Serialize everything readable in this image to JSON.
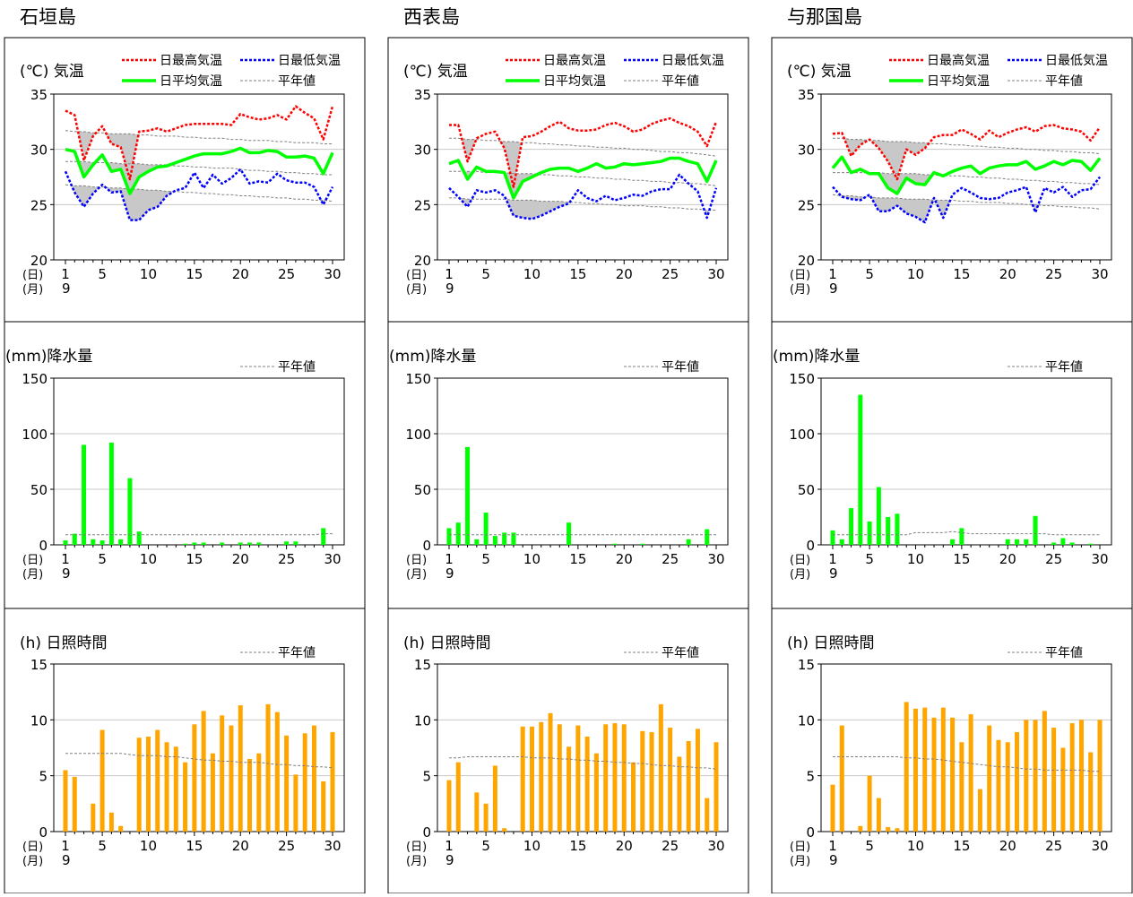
{
  "stations": [
    {
      "name": "石垣島",
      "temperature": {
        "title": "(℃) 気温",
        "legend": [
          "日最高気温",
          "日最低気温",
          "日平均気温",
          "平年値"
        ],
        "ylim": [
          20,
          35
        ],
        "yticks": [
          "35",
          "30",
          "25",
          "20"
        ],
        "max": [
          33.5,
          33.1,
          29.0,
          31.2,
          32.1,
          30.5,
          30.2,
          27.3,
          31.6,
          31.7,
          31.9,
          31.6,
          31.9,
          32.2,
          32.3,
          32.3,
          32.3,
          32.3,
          32.2,
          33.2,
          32.9,
          32.7,
          32.8,
          33.1,
          32.7,
          33.9,
          33.3,
          32.8,
          30.9,
          33.9
        ],
        "min": [
          28.0,
          26.1,
          24.8,
          26.0,
          26.8,
          26.1,
          26.2,
          23.6,
          23.6,
          24.5,
          24.8,
          25.8,
          26.3,
          26.5,
          27.9,
          26.5,
          27.7,
          26.9,
          27.4,
          28.2,
          26.9,
          27.1,
          27.0,
          27.8,
          27.2,
          27.0,
          27.0,
          26.6,
          25.0,
          26.6
        ],
        "avg": [
          30.0,
          29.8,
          27.5,
          28.6,
          29.5,
          28.0,
          28.2,
          26.0,
          27.5,
          28.0,
          28.4,
          28.5,
          28.8,
          29.1,
          29.4,
          29.6,
          29.6,
          29.6,
          29.8,
          30.1,
          29.7,
          29.7,
          29.9,
          29.8,
          29.3,
          29.3,
          29.4,
          29.2,
          27.8,
          29.7
        ],
        "normal_max": [
          31.7,
          31.6,
          31.6,
          31.5,
          31.5,
          31.4,
          31.4,
          31.4,
          31.3,
          31.3,
          31.2,
          31.2,
          31.2,
          31.1,
          31.1,
          31.0,
          31.0,
          31.0,
          30.9,
          30.9,
          30.8,
          30.8,
          30.8,
          30.7,
          30.7,
          30.6,
          30.6,
          30.6,
          30.5,
          30.5
        ],
        "normal_avg": [
          28.9,
          28.9,
          28.9,
          28.8,
          28.8,
          28.8,
          28.7,
          28.7,
          28.7,
          28.6,
          28.6,
          28.6,
          28.5,
          28.5,
          28.4,
          28.4,
          28.3,
          28.3,
          28.3,
          28.2,
          28.1,
          28.1,
          28.0,
          28.0,
          27.9,
          27.9,
          27.8,
          27.8,
          27.7,
          27.7
        ],
        "normal_min": [
          26.8,
          26.7,
          26.7,
          26.6,
          26.6,
          26.5,
          26.5,
          26.4,
          26.4,
          26.3,
          26.3,
          26.2,
          26.2,
          26.1,
          26.1,
          26.0,
          26.0,
          25.9,
          25.9,
          25.8,
          25.8,
          25.7,
          25.7,
          25.6,
          25.6,
          25.5,
          25.5,
          25.4,
          25.4,
          25.3
        ]
      },
      "rain": {
        "title": "(mm)降水量",
        "legend": [
          "平年値"
        ],
        "ylim": [
          0,
          150
        ],
        "yticks": [
          "150",
          "100",
          "50",
          "0"
        ],
        "values": [
          4,
          10,
          90,
          5,
          4,
          92,
          5,
          60,
          12,
          0,
          0,
          0,
          0,
          1,
          2,
          2,
          0,
          2,
          0,
          2,
          2,
          2,
          0,
          0,
          3,
          3,
          0,
          0,
          15,
          0
        ],
        "normal": [
          9,
          9,
          9,
          9,
          9,
          9,
          9,
          9,
          9,
          9,
          9,
          9,
          9,
          9,
          9,
          9,
          9,
          9,
          9,
          9,
          9,
          9,
          9,
          9,
          9,
          9,
          9,
          9,
          10,
          10
        ]
      },
      "sun": {
        "title": "(h) 日照時間",
        "legend": [
          "平年値"
        ],
        "ylim": [
          0,
          15
        ],
        "yticks": [
          "15",
          "10",
          "5",
          "0"
        ],
        "values": [
          5.5,
          4.9,
          0,
          2.5,
          9.1,
          1.7,
          0.5,
          0,
          8.4,
          8.5,
          9.1,
          8.0,
          7.6,
          6.2,
          9.6,
          10.8,
          7.0,
          10.4,
          9.5,
          11.3,
          6.5,
          7.0,
          11.4,
          10.7,
          8.6,
          5.1,
          8.8,
          9.5,
          4.5,
          8.9
        ],
        "normal": [
          7.0,
          7.0,
          7.0,
          7.0,
          7.0,
          7.0,
          7.0,
          6.9,
          6.8,
          6.8,
          6.8,
          6.7,
          6.7,
          6.6,
          6.5,
          6.4,
          6.4,
          6.3,
          6.3,
          6.2,
          6.2,
          6.2,
          6.1,
          6.0,
          6.0,
          5.9,
          5.9,
          5.8,
          5.8,
          5.7
        ]
      }
    },
    {
      "name": "西表島",
      "temperature": {
        "title": "(℃) 気温",
        "legend": [
          "日最高気温",
          "日最低気温",
          "日平均気温",
          "平年値"
        ],
        "ylim": [
          20,
          35
        ],
        "yticks": [
          "35",
          "30",
          "25",
          "20"
        ],
        "max": [
          32.2,
          32.2,
          28.9,
          31.0,
          31.4,
          31.6,
          30.1,
          26.6,
          31.1,
          31.2,
          31.6,
          32.1,
          32.5,
          31.9,
          31.7,
          31.7,
          31.8,
          32.2,
          32.4,
          32.1,
          31.6,
          31.8,
          32.3,
          32.6,
          32.8,
          32.4,
          32.1,
          31.6,
          30.3,
          32.5
        ],
        "min": [
          26.5,
          25.7,
          24.8,
          26.3,
          26.1,
          26.3,
          25.8,
          24.0,
          23.8,
          23.7,
          24.0,
          24.4,
          24.8,
          25.1,
          26.3,
          25.6,
          25.3,
          25.8,
          25.4,
          25.6,
          25.9,
          25.8,
          26.2,
          26.4,
          26.4,
          27.7,
          26.9,
          26.2,
          23.8,
          26.5
        ],
        "avg": [
          28.7,
          29.0,
          27.3,
          28.4,
          28.0,
          28.0,
          27.9,
          25.6,
          27.1,
          27.5,
          27.9,
          28.2,
          28.3,
          28.3,
          28.0,
          28.3,
          28.7,
          28.3,
          28.4,
          28.7,
          28.6,
          28.7,
          28.8,
          28.9,
          29.2,
          29.2,
          28.9,
          28.7,
          27.1,
          29.0
        ],
        "normal_max": [
          31.0,
          31.0,
          30.9,
          30.9,
          30.8,
          30.8,
          30.7,
          30.7,
          30.6,
          30.6,
          30.5,
          30.5,
          30.4,
          30.4,
          30.3,
          30.3,
          30.2,
          30.2,
          30.1,
          30.1,
          30.0,
          30.0,
          29.9,
          29.8,
          29.8,
          29.7,
          29.7,
          29.6,
          29.5,
          29.4
        ],
        "normal_avg": [
          28.0,
          28.0,
          28.0,
          28.0,
          27.9,
          27.9,
          27.9,
          27.8,
          27.8,
          27.8,
          27.7,
          27.7,
          27.6,
          27.6,
          27.5,
          27.5,
          27.4,
          27.4,
          27.3,
          27.3,
          27.2,
          27.2,
          27.1,
          27.1,
          27.0,
          27.0,
          26.9,
          26.9,
          26.8,
          26.7
        ],
        "normal_min": [
          25.6,
          25.6,
          25.5,
          25.5,
          25.5,
          25.5,
          25.5,
          25.4,
          25.4,
          25.4,
          25.3,
          25.3,
          25.3,
          25.2,
          25.2,
          25.1,
          25.1,
          25.0,
          25.0,
          24.9,
          24.9,
          24.9,
          24.8,
          24.8,
          24.7,
          24.7,
          24.6,
          24.6,
          24.5,
          24.5
        ]
      },
      "rain": {
        "title": "(mm)降水量",
        "legend": [
          "平年値"
        ],
        "ylim": [
          0,
          150
        ],
        "yticks": [
          "150",
          "100",
          "50",
          "0"
        ],
        "values": [
          15,
          20,
          88,
          5,
          29,
          8,
          11,
          11,
          0,
          0,
          0,
          0,
          0,
          20,
          0,
          0,
          0,
          0,
          1,
          0,
          0,
          1,
          0,
          0,
          0,
          0,
          5,
          0,
          14,
          0
        ],
        "normal": [
          9,
          9,
          9,
          9,
          9,
          9,
          9,
          9,
          9,
          9,
          9,
          9,
          9,
          9,
          9,
          9,
          9,
          9,
          9,
          9,
          9,
          9,
          9,
          9,
          9,
          9,
          9,
          9,
          9,
          9
        ]
      },
      "sun": {
        "title": "(h) 日照時間",
        "legend": [
          "平年値"
        ],
        "ylim": [
          0,
          15
        ],
        "yticks": [
          "15",
          "10",
          "5",
          "0"
        ],
        "values": [
          4.6,
          6.2,
          0,
          3.5,
          2.5,
          5.9,
          0.3,
          0,
          9.4,
          9.4,
          9.8,
          10.6,
          9.6,
          7.6,
          9.5,
          8.5,
          7.0,
          9.6,
          9.7,
          9.6,
          6.2,
          9.0,
          8.9,
          11.4,
          9.3,
          6.7,
          8.1,
          9.2,
          3.0,
          8.0
        ],
        "normal": [
          6.6,
          6.6,
          6.7,
          6.7,
          6.7,
          6.7,
          6.7,
          6.7,
          6.7,
          6.6,
          6.6,
          6.6,
          6.5,
          6.5,
          6.4,
          6.4,
          6.3,
          6.3,
          6.2,
          6.2,
          6.1,
          6.1,
          6.0,
          5.9,
          5.9,
          5.8,
          5.8,
          5.7,
          5.7,
          5.6
        ]
      }
    },
    {
      "name": "与那国島",
      "temperature": {
        "title": "(℃) 気温",
        "legend": [
          "日最高気温",
          "日最低気温",
          "日平均気温",
          "平年値"
        ],
        "ylim": [
          20,
          35
        ],
        "yticks": [
          "35",
          "30",
          "25",
          "20"
        ],
        "max": [
          31.4,
          31.5,
          29.4,
          30.4,
          30.9,
          30.1,
          28.9,
          27.3,
          30.0,
          29.5,
          30.1,
          31.1,
          31.3,
          31.3,
          31.8,
          31.4,
          30.9,
          31.7,
          31.1,
          31.5,
          31.8,
          32.0,
          31.6,
          32.1,
          32.2,
          31.9,
          31.8,
          31.6,
          30.8,
          32.0
        ],
        "min": [
          26.6,
          25.7,
          25.5,
          25.4,
          25.9,
          24.4,
          24.4,
          24.9,
          24.2,
          23.9,
          23.4,
          25.6,
          23.8,
          25.9,
          26.5,
          26.1,
          25.6,
          25.5,
          25.6,
          26.1,
          26.3,
          26.6,
          24.3,
          26.5,
          26.1,
          26.6,
          25.7,
          26.3,
          26.4,
          27.5
        ],
        "avg": [
          28.3,
          29.3,
          27.9,
          28.2,
          27.8,
          27.8,
          26.5,
          26.0,
          27.4,
          26.9,
          26.8,
          27.9,
          27.6,
          28.0,
          28.3,
          28.5,
          27.8,
          28.3,
          28.5,
          28.6,
          28.6,
          28.9,
          28.2,
          28.5,
          28.9,
          28.6,
          29.0,
          28.9,
          28.1,
          29.2
        ],
        "normal_max": [
          31.0,
          31.0,
          30.9,
          30.9,
          30.8,
          30.8,
          30.7,
          30.7,
          30.7,
          30.6,
          30.6,
          30.5,
          30.5,
          30.4,
          30.4,
          30.3,
          30.3,
          30.2,
          30.2,
          30.1,
          30.1,
          30.0,
          30.0,
          29.9,
          29.9,
          29.8,
          29.8,
          29.7,
          29.7,
          29.6
        ],
        "normal_avg": [
          27.9,
          27.9,
          27.9,
          27.9,
          27.9,
          27.9,
          27.8,
          27.8,
          27.8,
          27.8,
          27.7,
          27.7,
          27.6,
          27.6,
          27.6,
          27.5,
          27.5,
          27.4,
          27.4,
          27.3,
          27.3,
          27.2,
          27.2,
          27.1,
          27.1,
          27.0,
          27.0,
          26.9,
          26.9,
          26.8
        ],
        "normal_min": [
          25.9,
          25.8,
          25.8,
          25.7,
          25.7,
          25.6,
          25.6,
          25.6,
          25.5,
          25.5,
          25.5,
          25.4,
          25.4,
          25.4,
          25.3,
          25.3,
          25.2,
          25.2,
          25.2,
          25.1,
          25.1,
          25.0,
          25.0,
          24.9,
          24.9,
          24.8,
          24.8,
          24.7,
          24.7,
          24.6
        ]
      },
      "rain": {
        "title": "(mm)降水量",
        "legend": [
          "平年値"
        ],
        "ylim": [
          0,
          150
        ],
        "yticks": [
          "150",
          "100",
          "50",
          "0"
        ],
        "values": [
          13,
          5,
          33,
          135,
          21,
          52,
          25,
          28,
          0,
          0,
          0,
          0,
          0,
          5,
          15,
          0,
          0,
          0,
          0,
          5,
          5,
          5,
          26,
          0,
          2,
          6,
          2,
          0,
          1,
          0
        ],
        "normal": [
          9,
          9,
          9,
          9,
          9,
          9,
          9,
          9,
          9,
          11,
          11,
          11,
          11,
          12,
          11,
          10,
          10,
          10,
          10,
          10,
          10,
          10,
          10,
          10,
          9,
          9,
          9,
          9,
          9,
          9
        ]
      },
      "sun": {
        "title": "(h) 日照時間",
        "legend": [
          "平年値"
        ],
        "ylim": [
          0,
          15
        ],
        "yticks": [
          "15",
          "10",
          "5",
          "0"
        ],
        "values": [
          4.2,
          9.5,
          0,
          0.5,
          5.0,
          3.0,
          0.4,
          0.3,
          11.6,
          11.0,
          11.1,
          10.2,
          11.1,
          10.2,
          8.0,
          10.5,
          3.8,
          9.5,
          8.2,
          8.0,
          8.9,
          10.0,
          10.0,
          10.8,
          9.3,
          7.5,
          9.7,
          10.0,
          7.1,
          10.0
        ],
        "normal": [
          6.7,
          6.7,
          6.7,
          6.7,
          6.7,
          6.7,
          6.7,
          6.7,
          6.6,
          6.6,
          6.5,
          6.5,
          6.4,
          6.3,
          6.2,
          6.1,
          6.0,
          5.9,
          5.8,
          5.8,
          5.7,
          5.6,
          5.6,
          5.5,
          5.5,
          5.5,
          5.5,
          5.5,
          5.4,
          5.4
        ]
      }
    }
  ],
  "x_axis": {
    "day_unit": "(日)",
    "month_unit": "(月)",
    "month": "9",
    "ticks": [
      "1",
      "5",
      "10",
      "15",
      "20",
      "25",
      "30"
    ],
    "tick_days": [
      1,
      5,
      10,
      15,
      20,
      25,
      30
    ]
  },
  "colors": {
    "max": "#ff0000",
    "min": "#0000ff",
    "avg": "#00ff00",
    "normal": "#808080",
    "rain_bar": "#00ff00",
    "sun_bar": "#ffa500",
    "shade": "#c8c8c8",
    "grid": "#c8c8c8"
  }
}
